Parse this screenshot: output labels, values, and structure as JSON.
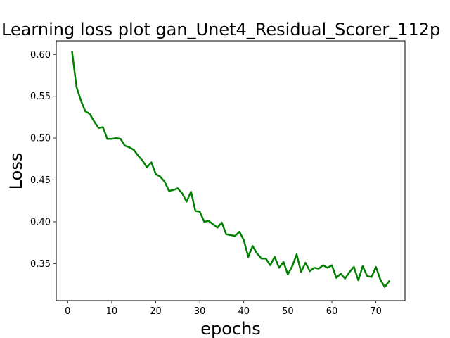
{
  "chart_data": {
    "type": "line",
    "title": "Learning loss plot gan_Unet4_Residual_Scorer_112p",
    "xlabel": "epochs",
    "ylabel": "Loss",
    "xlim": [
      -2.6,
      76.6
    ],
    "ylim": [
      0.3057,
      0.6162
    ],
    "xticks": [
      0,
      10,
      20,
      30,
      40,
      50,
      60,
      70
    ],
    "yticks": [
      0.35,
      0.4,
      0.45,
      0.5,
      0.55,
      0.6
    ],
    "ytick_labels": [
      "0.35",
      "0.40",
      "0.45",
      "0.50",
      "0.55",
      "0.60"
    ],
    "grid": false,
    "series": [
      {
        "color": "#008000",
        "x": [
          1,
          2,
          3,
          4,
          5,
          6,
          7,
          8,
          9,
          10,
          11,
          12,
          13,
          14,
          15,
          16,
          17,
          18,
          19,
          20,
          21,
          22,
          23,
          24,
          25,
          26,
          27,
          28,
          29,
          30,
          31,
          32,
          33,
          34,
          35,
          36,
          37,
          38,
          39,
          40,
          41,
          42,
          43,
          44,
          45,
          46,
          47,
          48,
          49,
          50,
          51,
          52,
          53,
          54,
          55,
          56,
          57,
          58,
          59,
          60,
          61,
          62,
          63,
          64,
          65,
          66,
          67,
          68,
          69,
          70,
          71,
          72,
          73
        ],
        "y": [
          0.603,
          0.561,
          0.545,
          0.532,
          0.529,
          0.52,
          0.512,
          0.513,
          0.499,
          0.499,
          0.5,
          0.499,
          0.491,
          0.489,
          0.486,
          0.479,
          0.473,
          0.465,
          0.471,
          0.457,
          0.454,
          0.448,
          0.437,
          0.438,
          0.44,
          0.434,
          0.424,
          0.436,
          0.413,
          0.412,
          0.4,
          0.401,
          0.397,
          0.393,
          0.399,
          0.385,
          0.384,
          0.383,
          0.388,
          0.378,
          0.358,
          0.371,
          0.362,
          0.356,
          0.356,
          0.348,
          0.358,
          0.345,
          0.352,
          0.337,
          0.347,
          0.361,
          0.34,
          0.351,
          0.341,
          0.345,
          0.344,
          0.348,
          0.345,
          0.348,
          0.333,
          0.338,
          0.332,
          0.34,
          0.346,
          0.33,
          0.347,
          0.335,
          0.334,
          0.346,
          0.331,
          0.322,
          0.329
        ]
      }
    ]
  }
}
